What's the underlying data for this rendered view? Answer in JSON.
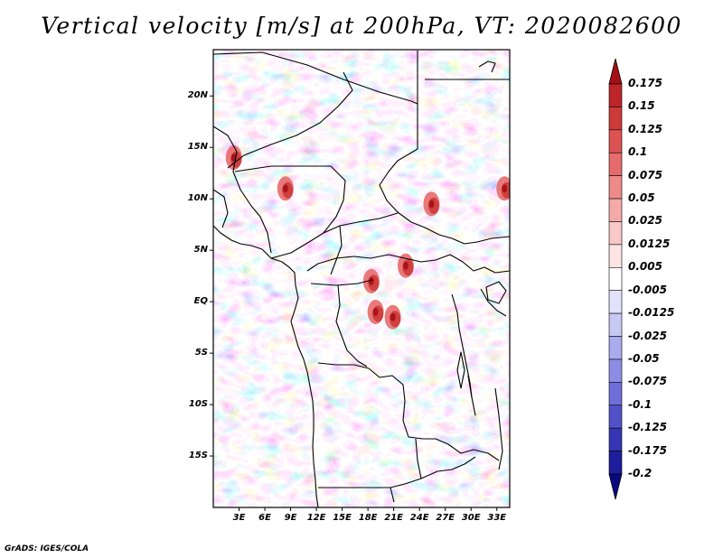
{
  "title": "Vertical velocity [m/s] at 200hPa, VT: 2020082600",
  "footer": "GrADS: IGES/COLA",
  "map": {
    "variable": "Vertical velocity",
    "units": "m/s",
    "level": "200hPa",
    "valid_time": "2020082600",
    "extent": {
      "lon_min": 0,
      "lon_max": 34.5,
      "lat_min": -20,
      "lat_max": 24.5
    },
    "lat_ticks": [
      {
        "value": 20,
        "label": "20N"
      },
      {
        "value": 15,
        "label": "15N"
      },
      {
        "value": 10,
        "label": "10N"
      },
      {
        "value": 5,
        "label": "5N"
      },
      {
        "value": 0,
        "label": "EQ"
      },
      {
        "value": -5,
        "label": "5S"
      },
      {
        "value": -10,
        "label": "10S"
      },
      {
        "value": -15,
        "label": "15S"
      }
    ],
    "lon_ticks": [
      {
        "value": 3,
        "label": "3E"
      },
      {
        "value": 6,
        "label": "6E"
      },
      {
        "value": 9,
        "label": "9E"
      },
      {
        "value": 12,
        "label": "12E"
      },
      {
        "value": 15,
        "label": "15E"
      },
      {
        "value": 18,
        "label": "18E"
      },
      {
        "value": 21,
        "label": "21E"
      },
      {
        "value": 24,
        "label": "24E"
      },
      {
        "value": 27,
        "label": "27E"
      },
      {
        "value": 30,
        "label": "30E"
      },
      {
        "value": 33,
        "label": "33E"
      }
    ],
    "strong_ascent_spots": [
      {
        "lon": 2.5,
        "lat": 14
      },
      {
        "lon": 8.5,
        "lat": 11
      },
      {
        "lon": 22.5,
        "lat": 3.5
      },
      {
        "lon": 18.5,
        "lat": 2
      },
      {
        "lon": 19,
        "lat": -1
      },
      {
        "lon": 21,
        "lat": -1.5
      },
      {
        "lon": 25.5,
        "lat": 9.5
      },
      {
        "lon": 34,
        "lat": 11
      }
    ]
  },
  "colorbar": {
    "labels": [
      "0.175",
      "0.15",
      "0.125",
      "0.1",
      "0.075",
      "0.05",
      "0.025",
      "0.0125",
      "0.005",
      "-0.005",
      "-0.0125",
      "-0.025",
      "-0.05",
      "-0.075",
      "-0.1",
      "-0.125",
      "-0.175",
      "-0.2"
    ],
    "colors": [
      "#a50f15",
      "#bd2528",
      "#cd3a3a",
      "#dc5252",
      "#e66b6b",
      "#ee8a8a",
      "#f5aaaa",
      "#f9c8c8",
      "#fce4e4",
      "#ffffff",
      "#e2e2fa",
      "#c8c8f4",
      "#aaaaee",
      "#8c8ce4",
      "#6e6ed8",
      "#5252c8",
      "#3636b4",
      "#1e1e9c",
      "#0a0a80"
    ]
  }
}
